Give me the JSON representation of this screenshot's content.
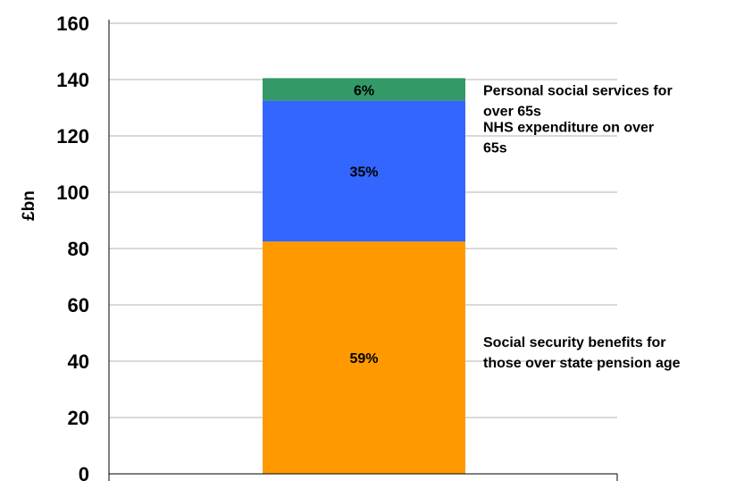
{
  "chart_data": {
    "type": "bar",
    "stacked": true,
    "ylabel": "£bn",
    "ylim": [
      0,
      160
    ],
    "yticks": [
      0,
      20,
      40,
      60,
      80,
      100,
      120,
      140,
      160
    ],
    "grid": true,
    "categories": [
      ""
    ],
    "series": [
      {
        "name": "Social security benefits for those over state pension age",
        "values": [
          82.5
        ],
        "share_label": "59%",
        "color": "#ff9900",
        "label_lines": [
          "Social security benefits for",
          "those over state pension age"
        ]
      },
      {
        "name": "NHS expenditure on over 65s",
        "values": [
          50
        ],
        "share_label": "35%",
        "color": "#3366ff",
        "label_lines": [
          "NHS expenditure on over",
          "65s"
        ]
      },
      {
        "name": "Personal social services for over 65s",
        "values": [
          8
        ],
        "share_label": "6%",
        "color": "#339966",
        "label_lines": [
          "Personal social services for",
          "over 65s"
        ]
      }
    ]
  }
}
